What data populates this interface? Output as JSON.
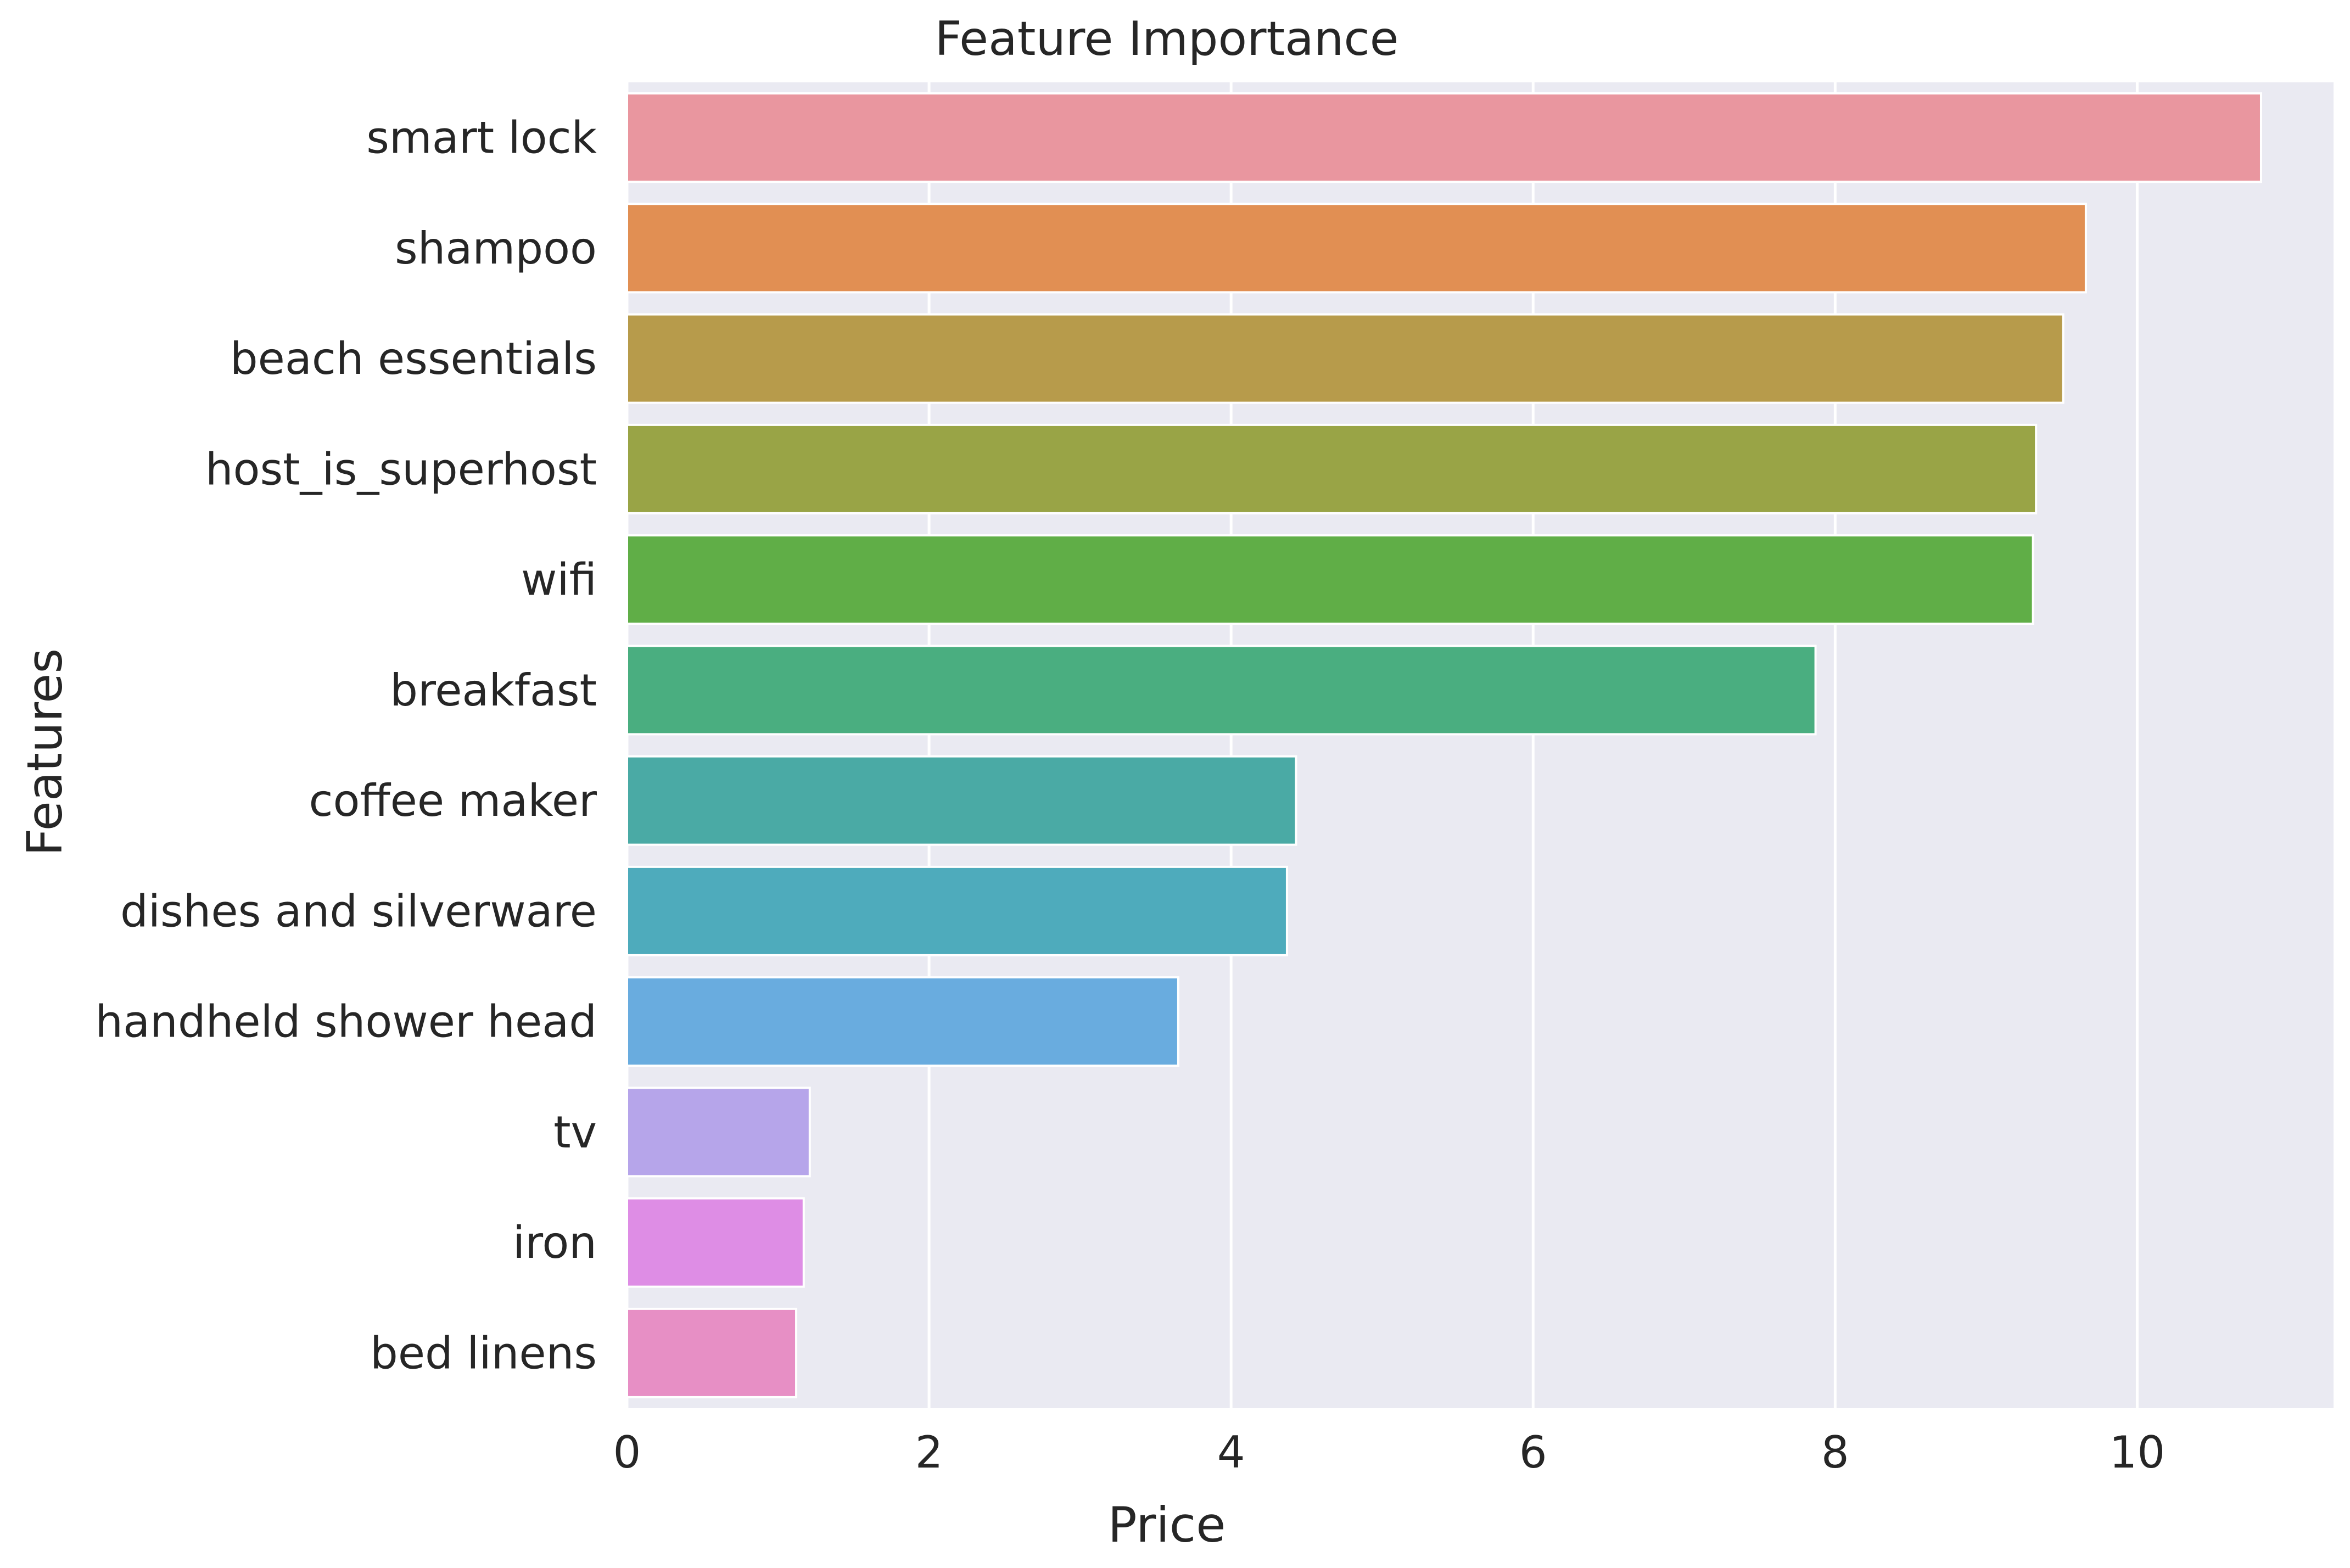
{
  "chart_data": {
    "type": "bar",
    "orientation": "horizontal",
    "title": "Feature Importance",
    "xlabel": "Price",
    "ylabel": "Features",
    "xlim": [
      0,
      11.3
    ],
    "xticks": [
      0,
      2,
      4,
      6,
      8,
      10
    ],
    "grid": true,
    "legend": "none",
    "background": "#eaeaf2",
    "categories": [
      "smart lock",
      "shampoo",
      "beach essentials",
      "host_is_superhost",
      "wifi",
      "breakfast",
      "coffee maker",
      "dishes and silverware",
      "handheld shower head",
      "tv",
      "iron",
      "bed linens"
    ],
    "values": [
      10.82,
      9.66,
      9.51,
      9.33,
      9.31,
      7.87,
      4.43,
      4.37,
      3.65,
      1.21,
      1.17,
      1.12
    ],
    "colors": [
      "#e9969f",
      "#e18f53",
      "#b79b4b",
      "#99a446",
      "#60ae47",
      "#4aae80",
      "#4aaaa5",
      "#4eabbc",
      "#69acdf",
      "#b6a5ea",
      "#de8de5",
      "#e78fc5"
    ]
  }
}
